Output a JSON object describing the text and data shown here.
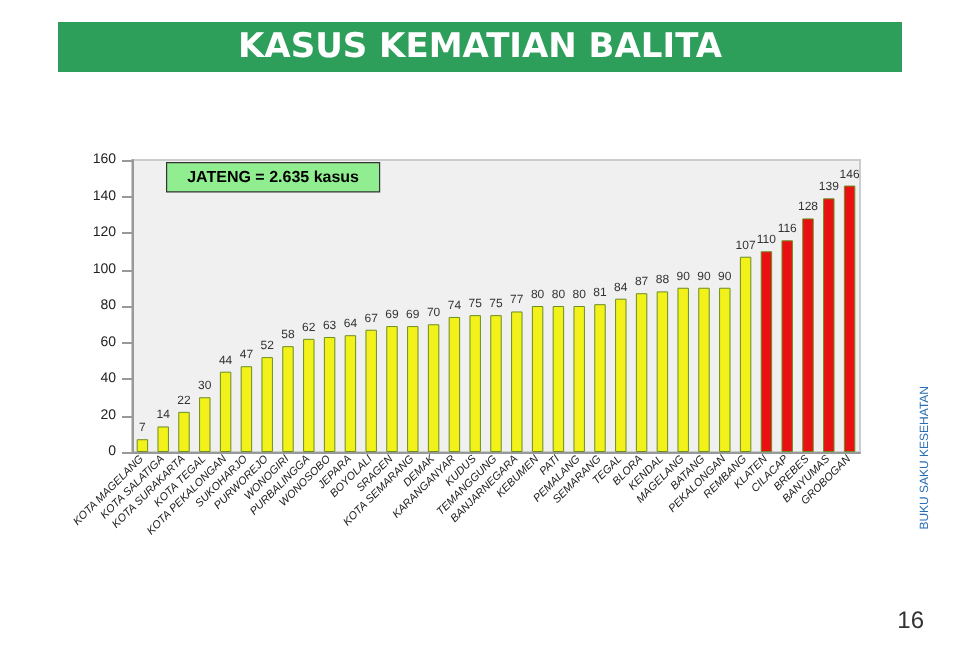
{
  "chart_data": {
    "type": "bar",
    "title": "KASUS KEMATIAN BALITA",
    "categories": [
      "KOTA MAGELANG",
      "KOTA SALATIGA",
      "KOTA SURAKARTA",
      "KOTA TEGAL",
      "KOTA PEKALONGAN",
      "SUKOHARJO",
      "PURWOREJO",
      "WONOGIRI",
      "PURBALINGGA",
      "WONOSOBO",
      "JEPARA",
      "BOYOLALI",
      "SRAGEN",
      "KOTA SEMARANG",
      "DEMAK",
      "KARANGANYAR",
      "KUDUS",
      "TEMANGGUNG",
      "BANJARNEGARA",
      "KEBUMEN",
      "PATI",
      "PEMALANG",
      "SEMARANG",
      "TEGAL",
      "BLORA",
      "KENDAL",
      "MAGELANG",
      "BATANG",
      "PEKALONGAN",
      "REMBANG",
      "KLATEN",
      "CILACAP",
      "BREBES",
      "BANYUMAS",
      "GROBOGAN"
    ],
    "values": [
      7,
      14,
      22,
      30,
      44,
      47,
      52,
      58,
      62,
      63,
      64,
      67,
      69,
      69,
      70,
      74,
      75,
      75,
      77,
      80,
      80,
      80,
      81,
      84,
      87,
      88,
      90,
      90,
      90,
      107,
      110,
      116,
      128,
      139,
      146
    ],
    "colors": [
      "#f2f21a",
      "#f2f21a",
      "#f2f21a",
      "#f2f21a",
      "#f2f21a",
      "#f2f21a",
      "#f2f21a",
      "#f2f21a",
      "#f2f21a",
      "#f2f21a",
      "#f2f21a",
      "#f2f21a",
      "#f2f21a",
      "#f2f21a",
      "#f2f21a",
      "#f2f21a",
      "#f2f21a",
      "#f2f21a",
      "#f2f21a",
      "#f2f21a",
      "#f2f21a",
      "#f2f21a",
      "#f2f21a",
      "#f2f21a",
      "#f2f21a",
      "#f2f21a",
      "#f2f21a",
      "#f2f21a",
      "#f2f21a",
      "#f2f21a",
      "#e81010",
      "#e81010",
      "#e81010",
      "#e81010",
      "#e81010"
    ],
    "ylim": [
      0,
      160
    ],
    "yticks": [
      0,
      20,
      40,
      60,
      80,
      100,
      120,
      140,
      160
    ],
    "data_labels": true,
    "grid": false,
    "annotations": [
      "JATENG = 2.635 kasus",
      "BUKU SAKU KESEHATAN",
      "16"
    ]
  }
}
